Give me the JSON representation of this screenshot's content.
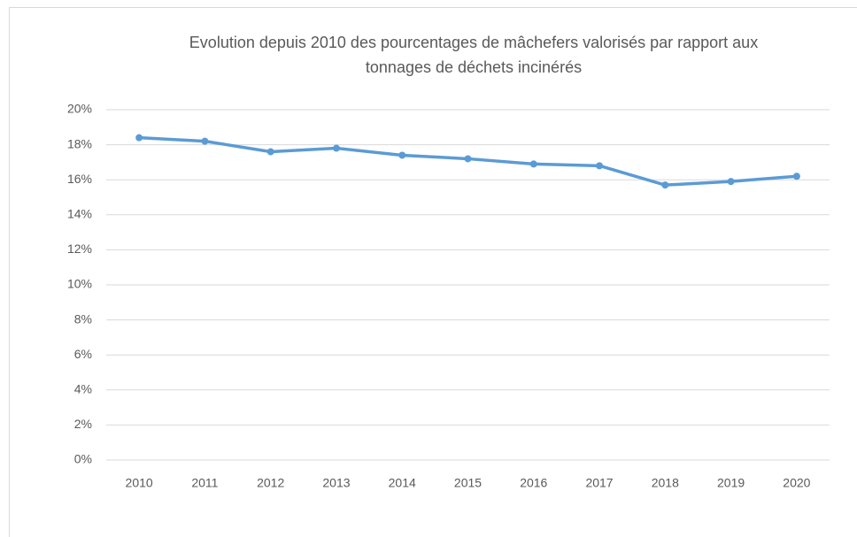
{
  "chart_data": {
    "type": "line",
    "title": "Evolution depuis 2010 des pourcentages de mâchefers valorisés par rapport aux tonnages de déchets incinérés",
    "categories": [
      "2010",
      "2011",
      "2012",
      "2013",
      "2014",
      "2015",
      "2016",
      "2017",
      "2018",
      "2019",
      "2020"
    ],
    "series": [
      {
        "name": "",
        "color": "#5b9bd5",
        "values": [
          18.4,
          18.2,
          17.6,
          17.8,
          17.4,
          17.2,
          16.9,
          16.8,
          15.7,
          15.9,
          16.2
        ]
      }
    ],
    "ylim": [
      0,
      20
    ],
    "yticks": [
      {
        "value": 0,
        "label": "0%"
      },
      {
        "value": 2,
        "label": "2%"
      },
      {
        "value": 4,
        "label": "4%"
      },
      {
        "value": 6,
        "label": "6%"
      },
      {
        "value": 8,
        "label": "8%"
      },
      {
        "value": 10,
        "label": "10%"
      },
      {
        "value": 12,
        "label": "12%"
      },
      {
        "value": 14,
        "label": "14%"
      },
      {
        "value": 16,
        "label": "16%"
      },
      {
        "value": 18,
        "label": "18%"
      },
      {
        "value": 20,
        "label": "20%"
      }
    ],
    "grid": true
  }
}
